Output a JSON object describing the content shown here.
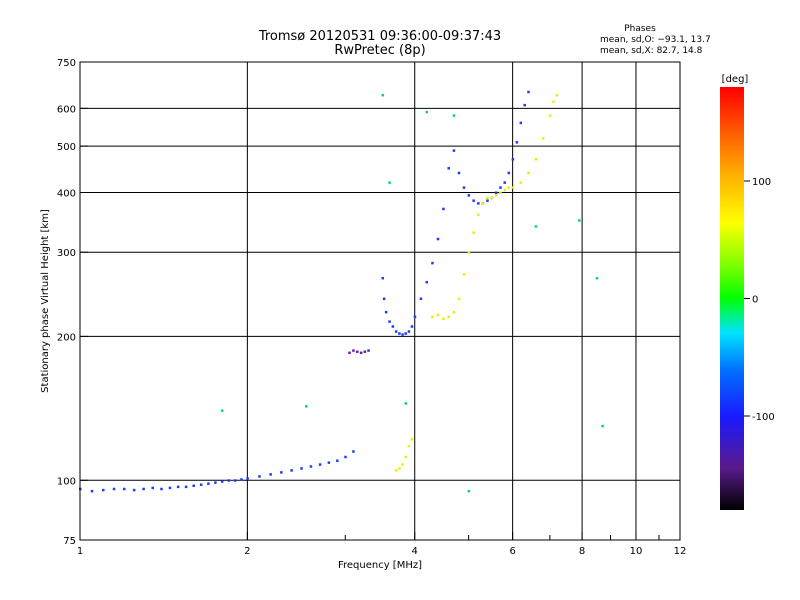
{
  "chart_data": {
    "type": "scatter",
    "title": "Tromsø 20120531 09:36:00-09:37:43",
    "subtitle": "RwPretec (8p)",
    "xlabel": "Frequency [MHz]",
    "ylabel": "Stationary phase Virtual Height [km]",
    "xscale": "log",
    "yscale": "log",
    "xlim": [
      1,
      12
    ],
    "ylim": [
      75,
      750
    ],
    "xticks": [
      1,
      2,
      4,
      6,
      8,
      10,
      12
    ],
    "xtick_labels": [
      "1",
      "2",
      "4",
      "6",
      "8",
      "10",
      "12"
    ],
    "yticks": [
      75,
      100,
      200,
      300,
      400,
      500,
      600,
      750
    ],
    "ytick_labels": [
      "75",
      "100",
      "200",
      "300",
      "400",
      "500",
      "600",
      "750"
    ],
    "grid": true,
    "stats": {
      "heading": "Phases",
      "line_o": "mean, sd,O: −93.1, 13.7",
      "line_x": "mean, sd,X:  82.7, 14.8"
    },
    "colorbar": {
      "label": "[deg]",
      "range": [
        -180,
        180
      ],
      "ticks": [
        100,
        0,
        -100
      ],
      "tick_labels": [
        "100",
        "0",
        "-100"
      ]
    },
    "series": [
      {
        "mode": "O",
        "phase": -100,
        "points": [
          [
            1.0,
            96
          ],
          [
            1.05,
            95
          ],
          [
            1.1,
            95.5
          ],
          [
            1.15,
            96
          ],
          [
            1.2,
            96
          ],
          [
            1.25,
            95.5
          ],
          [
            1.3,
            96
          ],
          [
            1.35,
            96.5
          ],
          [
            1.4,
            96
          ],
          [
            1.45,
            96.5
          ],
          [
            1.5,
            97
          ],
          [
            1.55,
            97
          ],
          [
            1.6,
            97.5
          ],
          [
            1.65,
            98
          ],
          [
            1.7,
            98.5
          ],
          [
            1.75,
            99
          ],
          [
            1.8,
            99.5
          ],
          [
            1.85,
            100
          ],
          [
            1.9,
            100
          ],
          [
            1.95,
            100.5
          ],
          [
            2.0,
            101
          ],
          [
            2.1,
            102
          ],
          [
            2.2,
            103
          ],
          [
            2.3,
            104
          ],
          [
            2.4,
            105
          ],
          [
            2.5,
            106
          ],
          [
            2.6,
            107
          ],
          [
            2.7,
            108
          ],
          [
            2.8,
            109
          ],
          [
            2.9,
            110
          ],
          [
            3.0,
            112
          ],
          [
            3.1,
            115
          ],
          [
            3.5,
            265
          ],
          [
            3.52,
            240
          ],
          [
            3.55,
            225
          ],
          [
            3.6,
            215
          ],
          [
            3.65,
            210
          ],
          [
            3.7,
            205
          ],
          [
            3.75,
            203
          ],
          [
            3.8,
            202
          ],
          [
            3.85,
            203
          ],
          [
            3.9,
            205
          ],
          [
            3.95,
            210
          ],
          [
            4.0,
            220
          ],
          [
            4.1,
            240
          ],
          [
            4.2,
            260
          ],
          [
            4.3,
            285
          ],
          [
            4.4,
            320
          ],
          [
            4.5,
            370
          ],
          [
            4.6,
            450
          ],
          [
            4.7,
            490
          ],
          [
            4.8,
            440
          ],
          [
            4.9,
            410
          ],
          [
            5.0,
            395
          ],
          [
            5.1,
            385
          ],
          [
            5.2,
            380
          ],
          [
            5.3,
            380
          ],
          [
            5.4,
            385
          ],
          [
            5.5,
            390
          ],
          [
            5.6,
            400
          ],
          [
            5.7,
            410
          ],
          [
            5.8,
            420
          ],
          [
            5.9,
            440
          ],
          [
            6.0,
            470
          ],
          [
            6.1,
            510
          ],
          [
            6.2,
            560
          ],
          [
            6.3,
            610
          ],
          [
            6.4,
            650
          ]
        ]
      },
      {
        "mode": "X",
        "phase": 100,
        "points": [
          [
            3.7,
            105
          ],
          [
            3.75,
            106
          ],
          [
            3.8,
            108
          ],
          [
            3.85,
            112
          ],
          [
            3.9,
            118
          ],
          [
            3.95,
            122
          ],
          [
            4.3,
            220
          ],
          [
            4.4,
            222
          ],
          [
            4.5,
            218
          ],
          [
            4.6,
            220
          ],
          [
            4.7,
            225
          ],
          [
            4.8,
            240
          ],
          [
            4.9,
            270
          ],
          [
            5.0,
            300
          ],
          [
            5.1,
            330
          ],
          [
            5.2,
            360
          ],
          [
            5.3,
            380
          ],
          [
            5.4,
            390
          ],
          [
            5.5,
            390
          ],
          [
            5.6,
            395
          ],
          [
            5.7,
            400
          ],
          [
            5.8,
            405
          ],
          [
            5.9,
            410
          ],
          [
            6.0,
            410
          ],
          [
            6.2,
            420
          ],
          [
            6.4,
            440
          ],
          [
            6.6,
            470
          ],
          [
            6.8,
            520
          ],
          [
            7.0,
            580
          ],
          [
            7.1,
            620
          ],
          [
            7.2,
            640
          ]
        ]
      },
      {
        "mode": "F1-low",
        "phase": -130,
        "points": [
          [
            3.05,
            185
          ],
          [
            3.1,
            187
          ],
          [
            3.15,
            186
          ],
          [
            3.2,
            185
          ],
          [
            3.25,
            186
          ],
          [
            3.3,
            187
          ]
        ]
      },
      {
        "mode": "scatter",
        "phase": 0,
        "points": [
          [
            1.8,
            140
          ],
          [
            2.55,
            143
          ],
          [
            3.5,
            640
          ],
          [
            3.6,
            420
          ],
          [
            4.2,
            590
          ],
          [
            5.0,
            95
          ],
          [
            6.6,
            340
          ],
          [
            7.9,
            350
          ],
          [
            8.5,
            265
          ],
          [
            8.7,
            130
          ],
          [
            4.7,
            580
          ],
          [
            3.85,
            145
          ]
        ]
      }
    ]
  }
}
